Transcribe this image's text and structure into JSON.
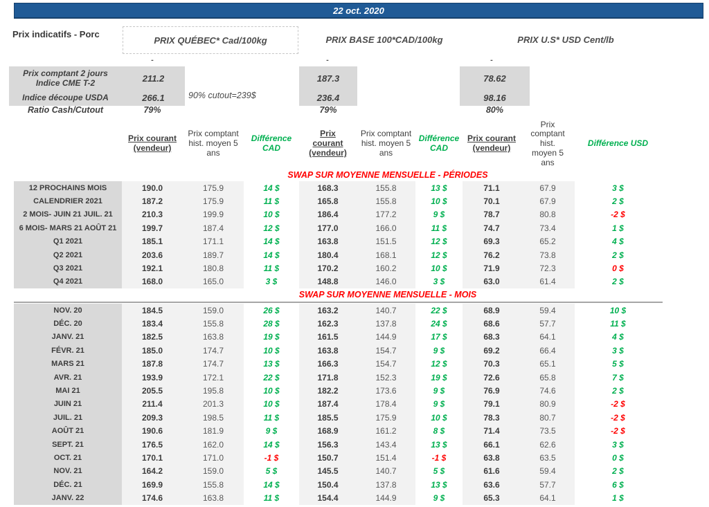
{
  "title_bar": {
    "date": "22 oct. 2020"
  },
  "header": {
    "page_label": "Prix indicatifs - Porc",
    "sections": {
      "quebec": "PRIX QUÉBEC* Cad/100kg",
      "base": "PRIX BASE 100*CAD/100kg",
      "us": "PRIX U.S* USD Cent/lb"
    }
  },
  "summary": {
    "dash": "-",
    "row1_label_line1": "Prix comptant 2 jours",
    "row1_label_line2": "Indice CME T-2",
    "row1_values": [
      "211.2",
      "187.3",
      "78.62"
    ],
    "row2_label": "Indice découpe USDA",
    "row2_values": [
      "266.1",
      "236.4",
      "98.16"
    ],
    "row2_note": "90% cutout=239$",
    "row3_label": "Ratio Cash/Cutout",
    "row3_values": [
      "79%",
      "79%",
      "80%"
    ]
  },
  "columns": {
    "current": "Prix courant (vendeur)",
    "hist": "Prix comptant hist. moyen 5 ans",
    "diff_cad": "Différence CAD",
    "diff_usd": "Différence USD"
  },
  "swap": {
    "periods_title": "SWAP SUR MOYENNE MENSUELLE - PÉRIODES",
    "months_title": "SWAP SUR MOYENNE MENSUELLE - MOIS"
  },
  "colors": {
    "accent_blue": "#1F5A96",
    "positive_green": "#00B050",
    "negative_red": "#FF0000",
    "label_gray": "#D9D9D9",
    "value_gray": "#F2F2F2"
  },
  "periods": [
    {
      "label": "12 PROCHAINS MOIS",
      "vals": [
        "190.0",
        "175.9",
        "14 $",
        "168.3",
        "155.8",
        "13 $",
        "71.1",
        "67.9",
        "3 $"
      ],
      "dc": [
        "g",
        "g",
        "g"
      ]
    },
    {
      "label": "CALENDRIER 2021",
      "vals": [
        "187.2",
        "175.9",
        "11 $",
        "165.8",
        "155.8",
        "10 $",
        "70.1",
        "67.9",
        "2 $"
      ],
      "dc": [
        "g",
        "g",
        "g"
      ]
    },
    {
      "label": "2 MOIS- JUIN 21 JUIL. 21",
      "vals": [
        "210.3",
        "199.9",
        "10 $",
        "186.4",
        "177.2",
        "9 $",
        "78.7",
        "80.8",
        "-2 $"
      ],
      "dc": [
        "g",
        "g",
        "r"
      ]
    },
    {
      "label": "6 MOIS- MARS 21 AOÛT 21",
      "vals": [
        "199.7",
        "187.4",
        "12 $",
        "177.0",
        "166.0",
        "11 $",
        "74.7",
        "73.4",
        "1 $"
      ],
      "dc": [
        "g",
        "g",
        "g"
      ]
    },
    {
      "label": "Q1 2021",
      "vals": [
        "185.1",
        "171.1",
        "14 $",
        "163.8",
        "151.5",
        "12 $",
        "69.3",
        "65.2",
        "4 $"
      ],
      "dc": [
        "g",
        "g",
        "g"
      ]
    },
    {
      "label": "Q2 2021",
      "vals": [
        "203.6",
        "189.7",
        "14 $",
        "180.4",
        "168.1",
        "12 $",
        "76.2",
        "73.8",
        "2 $"
      ],
      "dc": [
        "g",
        "g",
        "g"
      ]
    },
    {
      "label": "Q3 2021",
      "vals": [
        "192.1",
        "180.8",
        "11 $",
        "170.2",
        "160.2",
        "10 $",
        "71.9",
        "72.3",
        "0 $"
      ],
      "dc": [
        "g",
        "g",
        "r"
      ]
    },
    {
      "label": "Q4 2021",
      "vals": [
        "168.0",
        "165.0",
        "3 $",
        "148.8",
        "146.0",
        "3 $",
        "63.0",
        "61.4",
        "2 $"
      ],
      "dc": [
        "g",
        "g",
        "g"
      ]
    }
  ],
  "months": [
    {
      "label": "NOV. 20",
      "vals": [
        "184.5",
        "159.0",
        "26 $",
        "163.2",
        "140.7",
        "22 $",
        "68.9",
        "59.4",
        "10 $"
      ],
      "dc": [
        "g",
        "g",
        "g"
      ]
    },
    {
      "label": "DÉC. 20",
      "vals": [
        "183.4",
        "155.8",
        "28 $",
        "162.3",
        "137.8",
        "24 $",
        "68.6",
        "57.7",
        "11 $"
      ],
      "dc": [
        "g",
        "g",
        "g"
      ]
    },
    {
      "label": "JANV. 21",
      "vals": [
        "182.5",
        "163.8",
        "19 $",
        "161.5",
        "144.9",
        "17 $",
        "68.3",
        "64.1",
        "4 $"
      ],
      "dc": [
        "g",
        "g",
        "g"
      ]
    },
    {
      "label": "FÉVR. 21",
      "vals": [
        "185.0",
        "174.7",
        "10 $",
        "163.8",
        "154.7",
        "9 $",
        "69.2",
        "66.4",
        "3 $"
      ],
      "dc": [
        "g",
        "g",
        "g"
      ]
    },
    {
      "label": "MARS 21",
      "vals": [
        "187.8",
        "174.7",
        "13 $",
        "166.3",
        "154.7",
        "12 $",
        "70.3",
        "65.1",
        "5 $"
      ],
      "dc": [
        "g",
        "g",
        "g"
      ]
    },
    {
      "label": "AVR. 21",
      "vals": [
        "193.9",
        "172.1",
        "22 $",
        "171.8",
        "152.3",
        "19 $",
        "72.6",
        "65.8",
        "7 $"
      ],
      "dc": [
        "g",
        "g",
        "g"
      ]
    },
    {
      "label": "MAI 21",
      "vals": [
        "205.5",
        "195.8",
        "10 $",
        "182.2",
        "173.6",
        "9 $",
        "76.9",
        "74.6",
        "2 $"
      ],
      "dc": [
        "g",
        "g",
        "g"
      ]
    },
    {
      "label": "JUIN 21",
      "vals": [
        "211.4",
        "201.3",
        "10 $",
        "187.4",
        "178.4",
        "9 $",
        "79.1",
        "80.9",
        "-2 $"
      ],
      "dc": [
        "g",
        "g",
        "r"
      ]
    },
    {
      "label": "JUIL. 21",
      "vals": [
        "209.3",
        "198.5",
        "11 $",
        "185.5",
        "175.9",
        "10 $",
        "78.3",
        "80.7",
        "-2 $"
      ],
      "dc": [
        "g",
        "g",
        "r"
      ]
    },
    {
      "label": "AOÛT 21",
      "vals": [
        "190.6",
        "181.9",
        "9 $",
        "168.9",
        "161.2",
        "8 $",
        "71.4",
        "73.5",
        "-2 $"
      ],
      "dc": [
        "g",
        "g",
        "r"
      ]
    },
    {
      "label": "SEPT. 21",
      "vals": [
        "176.5",
        "162.0",
        "14 $",
        "156.3",
        "143.4",
        "13 $",
        "66.1",
        "62.6",
        "3 $"
      ],
      "dc": [
        "g",
        "g",
        "g"
      ]
    },
    {
      "label": "OCT. 21",
      "vals": [
        "170.1",
        "171.0",
        "-1 $",
        "150.7",
        "151.4",
        "-1 $",
        "63.8",
        "63.5",
        "0 $"
      ],
      "dc": [
        "r",
        "r",
        "g"
      ]
    },
    {
      "label": "NOV. 21",
      "vals": [
        "164.2",
        "159.0",
        "5 $",
        "145.5",
        "140.7",
        "5 $",
        "61.6",
        "59.4",
        "2 $"
      ],
      "dc": [
        "g",
        "g",
        "g"
      ]
    },
    {
      "label": "DÉC. 21",
      "vals": [
        "169.9",
        "155.8",
        "14 $",
        "150.4",
        "137.8",
        "13 $",
        "63.6",
        "57.7",
        "6 $"
      ],
      "dc": [
        "g",
        "g",
        "g"
      ]
    },
    {
      "label": "JANV. 22",
      "vals": [
        "174.6",
        "163.8",
        "11 $",
        "154.4",
        "144.9",
        "9 $",
        "65.3",
        "64.1",
        "1 $"
      ],
      "dc": [
        "g",
        "g",
        "g"
      ]
    }
  ]
}
